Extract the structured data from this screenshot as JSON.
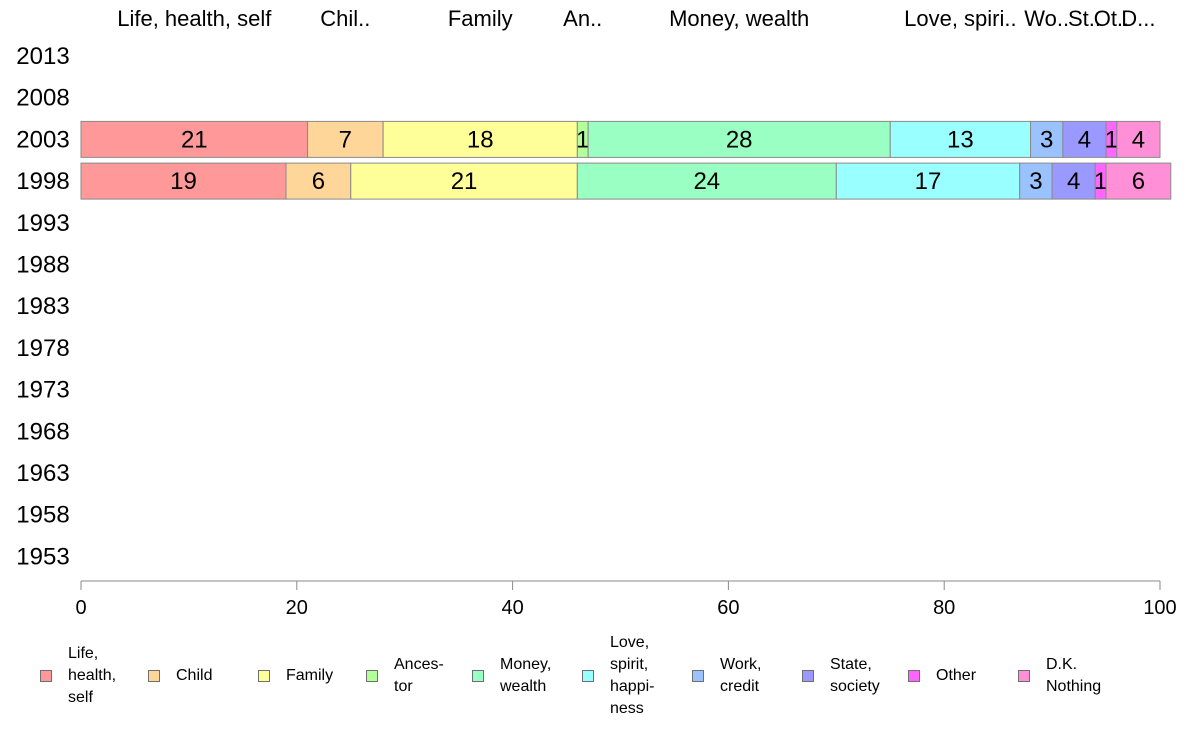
{
  "chart_data": {
    "type": "bar",
    "orientation": "horizontal",
    "stacked": true,
    "categories": [
      "2013",
      "2008",
      "2003",
      "1998",
      "1993",
      "1988",
      "1983",
      "1978",
      "1973",
      "1968",
      "1963",
      "1958",
      "1953"
    ],
    "series": [
      {
        "name": "Life, health, self",
        "legend_label": "Life,\nhealth,\nself",
        "color": "#ff9999",
        "values": [
          null,
          null,
          21,
          19,
          null,
          null,
          null,
          null,
          null,
          null,
          null,
          null,
          null
        ]
      },
      {
        "name": "Child",
        "legend_label": "Child",
        "color": "#ffd699",
        "values": [
          null,
          null,
          7,
          6,
          null,
          null,
          null,
          null,
          null,
          null,
          null,
          null,
          null
        ]
      },
      {
        "name": "Family",
        "legend_label": "Family",
        "color": "#ffff99",
        "values": [
          null,
          null,
          18,
          21,
          null,
          null,
          null,
          null,
          null,
          null,
          null,
          null,
          null
        ]
      },
      {
        "name": "Ancestor",
        "legend_label": "Ances-\ntor",
        "color": "#b3ff99",
        "values": [
          null,
          null,
          1,
          0,
          null,
          null,
          null,
          null,
          null,
          null,
          null,
          null,
          null
        ]
      },
      {
        "name": "Money, wealth",
        "legend_label": "Money,\nwealth",
        "color": "#99ffc2",
        "values": [
          null,
          null,
          28,
          24,
          null,
          null,
          null,
          null,
          null,
          null,
          null,
          null,
          null
        ]
      },
      {
        "name": "Love, spirit, happiness",
        "legend_label": "Love,\nspirit,\nhappi-\nness",
        "color": "#99ffff",
        "values": [
          null,
          null,
          13,
          17,
          null,
          null,
          null,
          null,
          null,
          null,
          null,
          null,
          null
        ]
      },
      {
        "name": "Work, credit",
        "legend_label": "Work,\ncredit",
        "color": "#99c2ff",
        "values": [
          null,
          null,
          3,
          3,
          null,
          null,
          null,
          null,
          null,
          null,
          null,
          null,
          null
        ]
      },
      {
        "name": "State, society",
        "legend_label": "State,\nsociety",
        "color": "#9999ff",
        "values": [
          null,
          null,
          4,
          4,
          null,
          null,
          null,
          null,
          null,
          null,
          null,
          null,
          null
        ]
      },
      {
        "name": "Other",
        "legend_label": "Other",
        "color": "#ff66ff",
        "values": [
          null,
          null,
          1,
          1,
          null,
          null,
          null,
          null,
          null,
          null,
          null,
          null,
          null
        ]
      },
      {
        "name": "D.K. Nothing",
        "legend_label": "D.K.\nNothing",
        "color": "#ff8fd6",
        "values": [
          null,
          null,
          4,
          6,
          null,
          null,
          null,
          null,
          null,
          null,
          null,
          null,
          null
        ]
      }
    ],
    "data_labels": {
      "2003": [
        "21",
        "7",
        "18",
        "1",
        "28",
        "13",
        "3",
        "4",
        "1",
        "4"
      ],
      "1998": [
        "19",
        "6",
        "21",
        "",
        "24",
        "17",
        "3",
        "4",
        "1",
        "6"
      ]
    },
    "top_labels": [
      "Life, health, self",
      "Chil..",
      "Family",
      "An..",
      "Money, wealth",
      "Love, spiri..",
      "Wo..",
      "St..",
      "Ot..",
      "D..."
    ],
    "xlim": [
      0,
      100
    ],
    "xticks": [
      0,
      20,
      40,
      60,
      80,
      100
    ],
    "title": "",
    "xlabel": "",
    "ylabel": "",
    "grid": false,
    "legend_position": "bottom"
  }
}
